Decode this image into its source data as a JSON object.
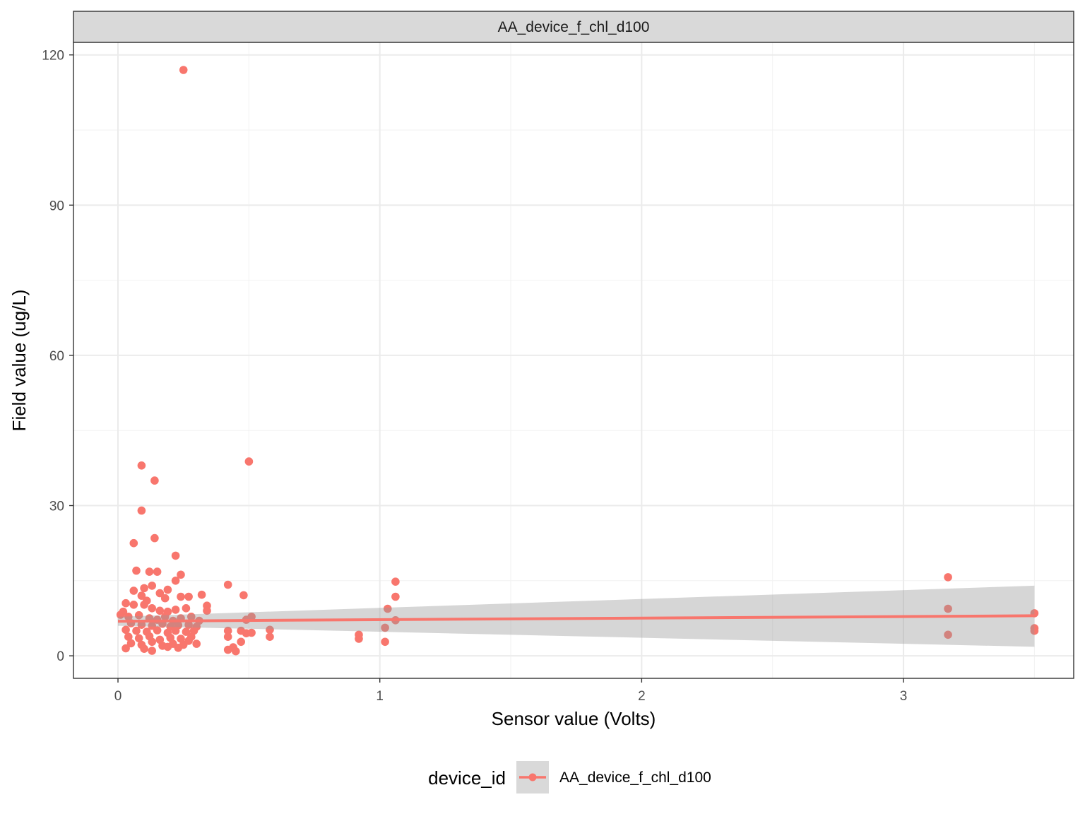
{
  "chart_data": {
    "type": "scatter",
    "facet_label": "AA_device_f_chl_d100",
    "xlabel": "Sensor value (Volts)",
    "ylabel": "Field value (ug/L)",
    "xlim": [
      -0.17,
      3.65
    ],
    "ylim": [
      -4.5,
      122.5
    ],
    "x_ticks": [
      0,
      1,
      2,
      3
    ],
    "y_ticks": [
      0,
      30,
      60,
      90,
      120
    ],
    "grid": true,
    "legend": {
      "position": "bottom",
      "title": "device_id",
      "entries": [
        "AA_device_f_chl_d100"
      ]
    },
    "series": [
      {
        "name": "AA_device_f_chl_d100",
        "color": "#F8766D",
        "points": [
          [
            0.25,
            117.0
          ],
          [
            0.09,
            38.0
          ],
          [
            0.5,
            38.8
          ],
          [
            0.14,
            35.0
          ],
          [
            0.09,
            29.0
          ],
          [
            0.06,
            22.5
          ],
          [
            0.14,
            23.5
          ],
          [
            0.22,
            20.0
          ],
          [
            0.24,
            16.2
          ],
          [
            0.07,
            17.0
          ],
          [
            0.12,
            16.8
          ],
          [
            0.15,
            16.8
          ],
          [
            0.22,
            15.0
          ],
          [
            0.06,
            13.0
          ],
          [
            0.1,
            13.5
          ],
          [
            0.13,
            14.0
          ],
          [
            0.16,
            12.5
          ],
          [
            0.19,
            13.2
          ],
          [
            0.09,
            12.0
          ],
          [
            0.11,
            11.0
          ],
          [
            0.18,
            11.5
          ],
          [
            0.24,
            11.8
          ],
          [
            0.27,
            11.8
          ],
          [
            0.32,
            12.2
          ],
          [
            0.42,
            14.2
          ],
          [
            0.48,
            12.1
          ],
          [
            0.03,
            10.5
          ],
          [
            0.06,
            10.2
          ],
          [
            0.1,
            10.2
          ],
          [
            0.13,
            9.5
          ],
          [
            0.16,
            9.0
          ],
          [
            0.19,
            8.8
          ],
          [
            0.22,
            9.2
          ],
          [
            0.26,
            9.5
          ],
          [
            0.34,
            10.0
          ],
          [
            0.34,
            9.0
          ],
          [
            0.02,
            8.8
          ],
          [
            0.04,
            7.8
          ],
          [
            0.08,
            8.1
          ],
          [
            0.12,
            7.5
          ],
          [
            0.15,
            7.2
          ],
          [
            0.18,
            7.8
          ],
          [
            0.21,
            7.0
          ],
          [
            0.24,
            7.5
          ],
          [
            0.28,
            7.8
          ],
          [
            0.31,
            7.0
          ],
          [
            0.01,
            8.2
          ],
          [
            0.05,
            6.5
          ],
          [
            0.09,
            6.2
          ],
          [
            0.13,
            6.0
          ],
          [
            0.17,
            6.4
          ],
          [
            0.2,
            5.8
          ],
          [
            0.23,
            6.1
          ],
          [
            0.27,
            6.2
          ],
          [
            0.3,
            5.8
          ],
          [
            0.03,
            5.2
          ],
          [
            0.07,
            5.0
          ],
          [
            0.11,
            4.8
          ],
          [
            0.15,
            5.1
          ],
          [
            0.19,
            4.6
          ],
          [
            0.22,
            5.0
          ],
          [
            0.26,
            4.8
          ],
          [
            0.29,
            5.0
          ],
          [
            0.04,
            3.8
          ],
          [
            0.08,
            3.5
          ],
          [
            0.12,
            3.9
          ],
          [
            0.16,
            3.2
          ],
          [
            0.2,
            3.6
          ],
          [
            0.24,
            3.4
          ],
          [
            0.28,
            3.8
          ],
          [
            0.05,
            2.5
          ],
          [
            0.09,
            2.2
          ],
          [
            0.13,
            2.8
          ],
          [
            0.17,
            2.0
          ],
          [
            0.21,
            2.4
          ],
          [
            0.25,
            2.2
          ],
          [
            0.3,
            2.4
          ],
          [
            0.03,
            1.5
          ],
          [
            0.1,
            1.4
          ],
          [
            0.13,
            1.0
          ],
          [
            0.19,
            1.8
          ],
          [
            0.23,
            1.6
          ],
          [
            0.27,
            3.0
          ],
          [
            0.42,
            1.2
          ],
          [
            0.44,
            1.7
          ],
          [
            0.42,
            3.8
          ],
          [
            0.42,
            5.0
          ],
          [
            0.45,
            0.9
          ],
          [
            0.47,
            2.8
          ],
          [
            0.47,
            5.0
          ],
          [
            0.49,
            4.5
          ],
          [
            0.49,
            7.2
          ],
          [
            0.51,
            4.6
          ],
          [
            0.51,
            7.8
          ],
          [
            0.58,
            3.8
          ],
          [
            0.58,
            5.2
          ],
          [
            0.92,
            3.4
          ],
          [
            0.92,
            4.2
          ],
          [
            1.02,
            2.8
          ],
          [
            1.02,
            5.6
          ],
          [
            1.03,
            9.4
          ],
          [
            1.06,
            7.1
          ],
          [
            1.06,
            11.8
          ],
          [
            1.06,
            14.8
          ],
          [
            3.17,
            15.7
          ],
          [
            3.17,
            9.4
          ],
          [
            3.17,
            4.2
          ],
          [
            3.5,
            8.5
          ],
          [
            3.5,
            5.5
          ],
          [
            3.5,
            5.0
          ]
        ]
      }
    ],
    "fit": {
      "method": "linear",
      "x_range": [
        0.0,
        3.5
      ],
      "y_start": 6.9,
      "y_end": 8.0,
      "ci_lower": [
        6.0,
        1.8
      ],
      "ci_upper": [
        7.8,
        14.0
      ]
    }
  }
}
